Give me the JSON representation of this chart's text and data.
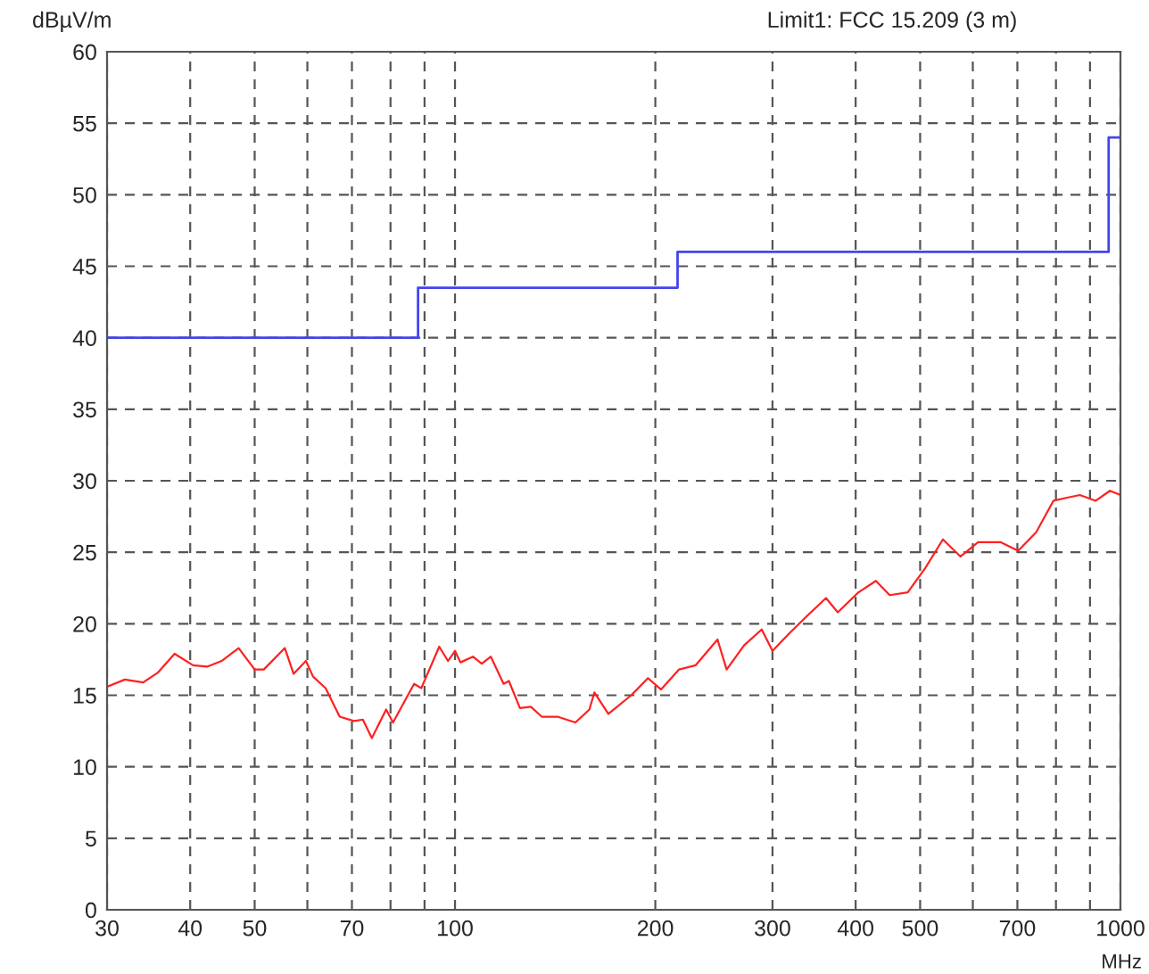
{
  "chart_data": {
    "type": "line",
    "title": "Limit1: FCC 15.209 (3 m)",
    "xlabel": "MHz",
    "ylabel": "dBµV/m",
    "log": "x",
    "xlim": [
      30,
      1000
    ],
    "ylim": [
      0,
      60
    ],
    "xticks": [
      30,
      40,
      50,
      {
        "value": 60,
        "label": null
      },
      70,
      {
        "value": 80,
        "label": null
      },
      {
        "value": 90,
        "label": null
      },
      100,
      200,
      300,
      400,
      500,
      {
        "value": 600,
        "label": null
      },
      700,
      {
        "value": 800,
        "label": null
      },
      {
        "value": 900,
        "label": null
      },
      1000
    ],
    "yticks": [
      0,
      5,
      10,
      15,
      20,
      25,
      30,
      35,
      40,
      45,
      50,
      55,
      60
    ],
    "grid": true,
    "legend": false,
    "marker": "none",
    "line_style": "solid",
    "series": [
      {
        "type": "step",
        "color": "#4444ee",
        "x": [
          30,
          88,
          216,
          960,
          1000
        ],
        "values": [
          40,
          43.5,
          46,
          54,
          54
        ]
      },
      {
        "color": "#ff2020",
        "x": [
          30,
          31.9,
          34.0,
          35.8,
          37.9,
          40.4,
          42.4,
          44.6,
          47.3,
          50.0,
          51.6,
          55.5,
          57.2,
          59.7,
          61.2,
          63.9,
          67.1,
          70.5,
          72.7,
          75.0,
          78.8,
          80.7,
          86.8,
          89.0,
          94.7,
          97.6,
          100,
          101.9,
          106.4,
          109.7,
          113.2,
          118.3,
          120.5,
          125.2,
          130,
          135,
          142.6,
          147,
          151.7,
          159.2,
          162,
          170,
          184,
          195,
          204,
          217,
          230,
          248,
          256,
          272,
          289,
          300,
          319,
          339,
          361,
          376,
          404,
          429,
          450,
          479,
          509,
          541,
          575,
          611,
          661,
          702,
          747,
          793,
          828,
          869,
          918,
          964,
          1000
        ],
        "values": [
          15.6,
          16.1,
          15.9,
          16.6,
          17.9,
          17.1,
          17.0,
          17.4,
          18.3,
          16.8,
          16.8,
          18.3,
          16.5,
          17.4,
          16.3,
          15.5,
          13.5,
          13.2,
          13.3,
          12.0,
          14.0,
          13.1,
          15.8,
          15.5,
          18.4,
          17.4,
          18.1,
          17.3,
          17.7,
          17.2,
          17.7,
          15.8,
          16.0,
          14.1,
          14.2,
          13.5,
          13.5,
          13.3,
          13.1,
          14.0,
          15.2,
          13.7,
          15.0,
          16.2,
          15.4,
          16.8,
          17.1,
          18.9,
          16.8,
          18.5,
          19.6,
          18.1,
          19.4,
          20.6,
          21.8,
          20.8,
          22.2,
          23.0,
          22.0,
          22.2,
          23.9,
          25.9,
          24.7,
          25.7,
          25.7,
          25.1,
          26.4,
          28.6,
          28.8,
          29.0,
          28.6,
          29.3,
          29.0
        ]
      }
    ]
  }
}
